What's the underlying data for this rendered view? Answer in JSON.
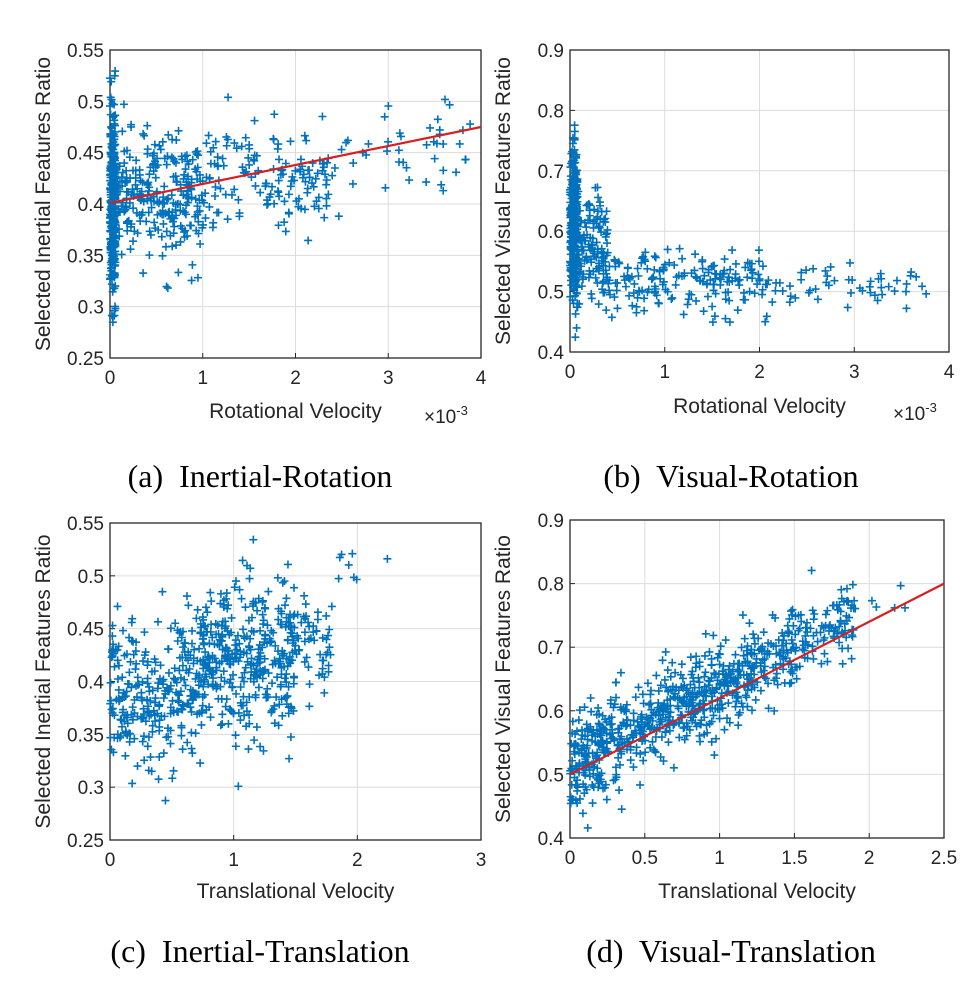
{
  "colors": {
    "marker": "#0072BD",
    "fit_line": "#D62020",
    "grid": "#DCDCDC",
    "axis": "#262626"
  },
  "chart_data": [
    {
      "id": "a",
      "type": "scatter",
      "caption": "(a)  Inertial-Rotation",
      "xlabel": "Rotational Velocity",
      "ylabel": "Selected Inertial Features Ratio",
      "x_exponent_base": "×10",
      "x_exponent_power": "-3",
      "xlim": [
        0,
        4
      ],
      "ylim": [
        0.25,
        0.55
      ],
      "xticks": [
        0,
        1,
        2,
        3,
        4
      ],
      "xtick_labels": [
        "0",
        "1",
        "2",
        "3",
        "4"
      ],
      "yticks": [
        0.25,
        0.3,
        0.35,
        0.4,
        0.45,
        0.5,
        0.55
      ],
      "ytick_labels": [
        "0.25",
        "0.3",
        "0.35",
        "0.4",
        "0.45",
        "0.5",
        "0.55"
      ],
      "marker": "+",
      "fit_line": {
        "x": [
          0,
          4
        ],
        "y": [
          0.401,
          0.475
        ]
      },
      "point_clusters": [
        {
          "x_range": [
            0.0,
            0.06
          ],
          "y_mean": 0.4,
          "y_sd": 0.045,
          "count": 320
        },
        {
          "x_range": [
            0.05,
            1.0
          ],
          "y_mean": 0.405,
          "y_sd": 0.03,
          "count": 260
        },
        {
          "x_range": [
            1.0,
            2.5
          ],
          "y_mean": 0.425,
          "y_sd": 0.025,
          "count": 150
        },
        {
          "x_range": [
            2.5,
            3.9
          ],
          "y_mean": 0.455,
          "y_sd": 0.02,
          "count": 40
        }
      ]
    },
    {
      "id": "b",
      "type": "scatter",
      "caption": "(b)  Visual-Rotation",
      "xlabel": "Rotational Velocity",
      "ylabel": "Selected Visual Features Ratio",
      "x_exponent_base": "×10",
      "x_exponent_power": "-3",
      "xlim": [
        0,
        4
      ],
      "ylim": [
        0.4,
        0.9
      ],
      "xticks": [
        0,
        1,
        2,
        3,
        4
      ],
      "xtick_labels": [
        "0",
        "1",
        "2",
        "3",
        "4"
      ],
      "yticks": [
        0.4,
        0.5,
        0.6,
        0.7,
        0.8,
        0.9
      ],
      "ytick_labels": [
        "0.4",
        "0.5",
        "0.6",
        "0.7",
        "0.8",
        "0.9"
      ],
      "marker": "+",
      "fit_line": null,
      "point_clusters": [
        {
          "x_range": [
            0.0,
            0.08
          ],
          "y_mean": 0.61,
          "y_sd": 0.065,
          "count": 320
        },
        {
          "x_range": [
            0.05,
            0.4
          ],
          "y_mean": 0.57,
          "y_sd": 0.045,
          "count": 140
        },
        {
          "x_range": [
            0.4,
            2.0
          ],
          "y_mean": 0.515,
          "y_sd": 0.025,
          "count": 170
        },
        {
          "x_range": [
            2.0,
            3.8
          ],
          "y_mean": 0.51,
          "y_sd": 0.018,
          "count": 60
        }
      ]
    },
    {
      "id": "c",
      "type": "scatter",
      "caption": "(c)  Inertial-Translation",
      "xlabel": "Translational Velocity",
      "ylabel": "Selected Inertial Features Ratio",
      "x_exponent_base": "",
      "x_exponent_power": "",
      "xlim": [
        0,
        3
      ],
      "ylim": [
        0.25,
        0.55
      ],
      "xticks": [
        0,
        1,
        2,
        3
      ],
      "xtick_labels": [
        "0",
        "1",
        "2",
        "3"
      ],
      "yticks": [
        0.25,
        0.3,
        0.35,
        0.4,
        0.45,
        0.5,
        0.55
      ],
      "ytick_labels": [
        "0.25",
        "0.3",
        "0.35",
        "0.4",
        "0.45",
        "0.5",
        "0.55"
      ],
      "marker": "+",
      "fit_line": null,
      "point_clusters": [
        {
          "x_range": [
            0.0,
            0.7
          ],
          "y_mean": 0.39,
          "y_sd": 0.035,
          "count": 260
        },
        {
          "x_range": [
            0.7,
            1.5
          ],
          "y_mean": 0.415,
          "y_sd": 0.038,
          "count": 380
        },
        {
          "x_range": [
            1.5,
            1.8
          ],
          "y_mean": 0.44,
          "y_sd": 0.03,
          "count": 50
        },
        {
          "x_range": [
            1.8,
            2.25
          ],
          "y_mean": 0.5,
          "y_sd": 0.02,
          "count": 8
        }
      ]
    },
    {
      "id": "d",
      "type": "scatter",
      "caption": "(d)  Visual-Translation",
      "xlabel": "Translational Velocity",
      "ylabel": "Selected Visual Features Ratio",
      "x_exponent_base": "",
      "x_exponent_power": "",
      "xlim": [
        0,
        2.5
      ],
      "ylim": [
        0.4,
        0.9
      ],
      "xticks": [
        0,
        0.5,
        1,
        1.5,
        2,
        2.5
      ],
      "xtick_labels": [
        "0",
        "0.5",
        "1",
        "1.5",
        "2",
        "2.5"
      ],
      "yticks": [
        0.4,
        0.5,
        0.6,
        0.7,
        0.8,
        0.9
      ],
      "ytick_labels": [
        "0.4",
        "0.5",
        "0.6",
        "0.7",
        "0.8",
        "0.9"
      ],
      "marker": "+",
      "fit_line": {
        "x": [
          0,
          2.5
        ],
        "y": [
          0.5,
          0.8
        ]
      },
      "point_clusters": [
        {
          "x_range": [
            0.0,
            0.5
          ],
          "y_mean": 0.53,
          "y_sd": 0.035,
          "trend": "fit_line",
          "count": 260
        },
        {
          "x_range": [
            0.5,
            1.2
          ],
          "y_mean": 0.6,
          "y_sd": 0.035,
          "trend": "fit_line",
          "count": 330
        },
        {
          "x_range": [
            1.2,
            1.9
          ],
          "y_mean": 0.67,
          "y_sd": 0.03,
          "trend": "fit_line",
          "count": 200
        },
        {
          "x_range": [
            1.9,
            2.25
          ],
          "y_mean": 0.73,
          "y_sd": 0.02,
          "trend": "fit_line",
          "count": 6
        }
      ]
    }
  ]
}
